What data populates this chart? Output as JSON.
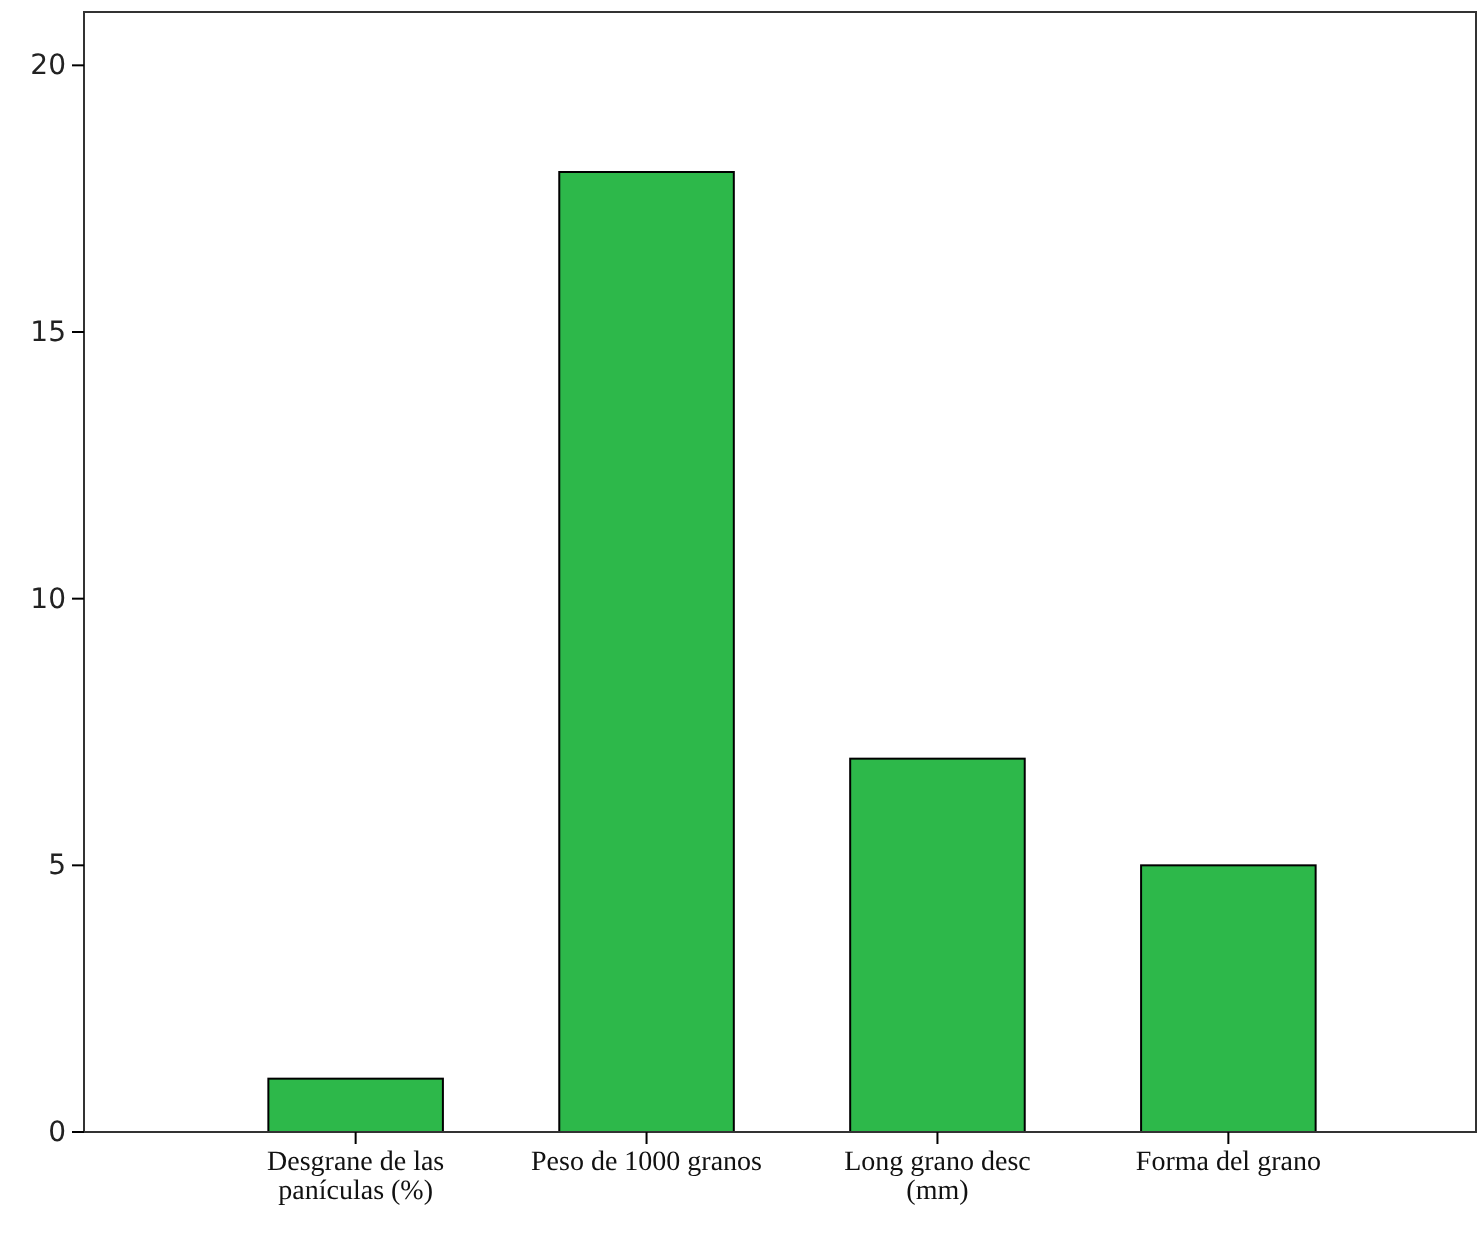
{
  "chart_data": {
    "type": "bar",
    "categories": [
      "Desgrane de las panículas (%)",
      "Peso de 1000 granos",
      "Long grano desc (mm)",
      "Forma del grano"
    ],
    "values": [
      1,
      18,
      7,
      5
    ],
    "color": "#2db84a",
    "ylim": [
      0,
      21
    ],
    "yticks": [
      0,
      5,
      10,
      15,
      20
    ],
    "grid": false
  }
}
